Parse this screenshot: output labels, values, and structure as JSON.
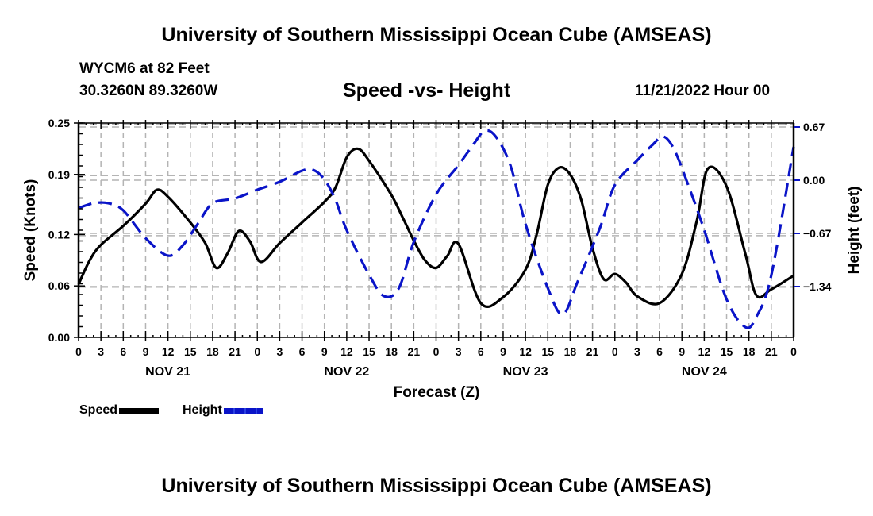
{
  "header": {
    "main_title": "University of Southern Mississippi Ocean Cube (AMSEAS)",
    "station": "WYCM6 at 82 Feet",
    "coordinates": "30.3260N  89.3260W",
    "subtitle": "Speed -vs- Height",
    "datetime": "11/21/2022 Hour 00"
  },
  "footer": {
    "title": "University of Southern Mississippi Ocean Cube (AMSEAS)"
  },
  "colors": {
    "speed": "#000000",
    "height": "#0a14c8",
    "grid": "#b4b4b4"
  },
  "chart_data": {
    "type": "line",
    "title": "Speed -vs- Height",
    "xlabel": "Forecast (Z)",
    "ylabel": "Speed (Knots)",
    "y2label": "Height (feet)",
    "xlim": [
      0,
      96
    ],
    "ylim": [
      0,
      0.25
    ],
    "y2lim": [
      -1.98,
      0.72
    ],
    "grid": true,
    "legend_position": "bottom-left",
    "x_tick_labels": [
      "0",
      "3",
      "6",
      "9",
      "12",
      "15",
      "18",
      "21",
      "0",
      "3",
      "6",
      "9",
      "12",
      "15",
      "18",
      "21",
      "0",
      "3",
      "6",
      "9",
      "12",
      "15",
      "18",
      "21",
      "0",
      "3",
      "6",
      "9",
      "12",
      "15",
      "18",
      "21",
      "0"
    ],
    "day_labels": [
      {
        "label": "NOV 21",
        "center_hour": 12
      },
      {
        "label": "NOV 22",
        "center_hour": 36
      },
      {
        "label": "NOV 23",
        "center_hour": 60
      },
      {
        "label": "NOV 24",
        "center_hour": 84
      }
    ],
    "y_ticks": [
      0.0,
      0.06,
      0.12,
      0.19,
      0.25
    ],
    "y_tick_labels": [
      "0.00",
      "0.06",
      "0.12",
      "0.19",
      "0.25"
    ],
    "y2_ticks": [
      0.67,
      0.0,
      -0.67,
      -1.34
    ],
    "y2_tick_labels": [
      "0.67",
      "0.00",
      "−0.67",
      "−1.34"
    ],
    "series": [
      {
        "name": "Speed",
        "axis": "left",
        "style": "solid",
        "x": [
          0,
          1.5,
          3,
          6,
          9,
          10.5,
          12,
          15,
          17,
          18.5,
          20,
          21.5,
          23,
          24.5,
          27,
          30,
          33,
          34.5,
          36,
          37.5,
          39,
          42,
          43.5,
          45,
          46.5,
          48,
          49.5,
          51,
          54,
          57,
          60,
          61.5,
          63,
          64.5,
          66,
          67.5,
          69,
          70.5,
          72,
          73.5,
          75,
          78,
          81,
          83,
          84.5,
          87,
          89.5,
          91,
          93,
          96
        ],
        "values": [
          0.062,
          0.09,
          0.108,
          0.13,
          0.156,
          0.172,
          0.164,
          0.134,
          0.11,
          0.081,
          0.098,
          0.124,
          0.112,
          0.088,
          0.11,
          0.134,
          0.158,
          0.175,
          0.21,
          0.22,
          0.206,
          0.166,
          0.14,
          0.113,
          0.09,
          0.081,
          0.095,
          0.109,
          0.04,
          0.047,
          0.079,
          0.12,
          0.178,
          0.198,
          0.19,
          0.16,
          0.104,
          0.068,
          0.074,
          0.064,
          0.048,
          0.04,
          0.074,
          0.136,
          0.197,
          0.176,
          0.098,
          0.049,
          0.056,
          0.072
        ]
      },
      {
        "name": "Height",
        "axis": "right",
        "style": "dashed",
        "x": [
          0,
          2,
          4,
          6,
          9,
          12,
          14,
          16,
          18,
          21,
          24,
          27,
          30,
          31.5,
          33,
          34.5,
          36,
          39,
          41,
          43,
          45,
          48,
          51,
          53,
          54.5,
          56,
          58,
          60,
          63,
          65,
          67,
          70,
          72,
          75,
          77,
          78.5,
          80,
          82,
          84,
          87,
          89.5,
          91,
          93,
          96
        ],
        "values": [
          -0.35,
          -0.29,
          -0.29,
          -0.38,
          -0.73,
          -0.95,
          -0.82,
          -0.55,
          -0.29,
          -0.23,
          -0.12,
          -0.02,
          0.12,
          0.13,
          0.01,
          -0.25,
          -0.63,
          -1.19,
          -1.46,
          -1.36,
          -0.78,
          -0.18,
          0.19,
          0.45,
          0.62,
          0.55,
          0.18,
          -0.55,
          -1.36,
          -1.69,
          -1.28,
          -0.6,
          -0.06,
          0.25,
          0.44,
          0.55,
          0.38,
          -0.1,
          -0.63,
          -1.5,
          -1.85,
          -1.72,
          -1.2,
          0.42
        ]
      }
    ]
  }
}
